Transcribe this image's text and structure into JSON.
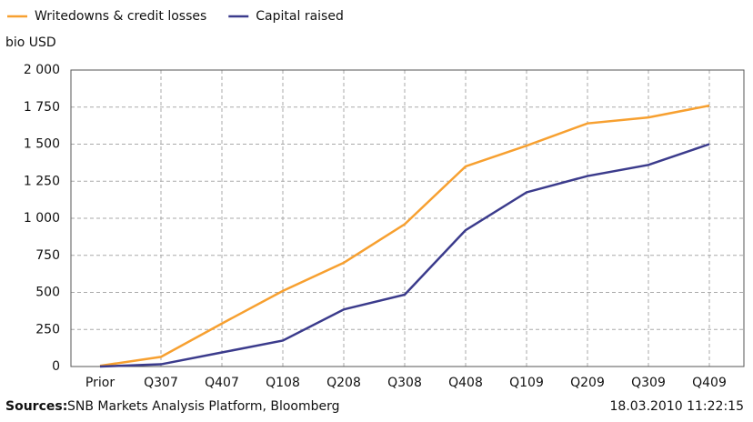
{
  "chart_data": {
    "type": "line",
    "y_label": "bio USD",
    "categories": [
      "Prior",
      "Q307",
      "Q407",
      "Q108",
      "Q208",
      "Q308",
      "Q408",
      "Q109",
      "Q209",
      "Q309",
      "Q409"
    ],
    "series": [
      {
        "name": "Writedowns & credit losses",
        "color": "#f7a030",
        "values": [
          5,
          65,
          290,
          510,
          700,
          960,
          1350,
          1490,
          1640,
          1680,
          1760
        ]
      },
      {
        "name": "Capital raised",
        "color": "#3b3b8c",
        "values": [
          0,
          15,
          95,
          175,
          385,
          485,
          920,
          1175,
          1285,
          1360,
          1500
        ]
      }
    ],
    "ylim": [
      0,
      2000
    ],
    "yticks": [
      0,
      250,
      500,
      750,
      {
        "value": 1000,
        "label": "1 000"
      },
      {
        "value": 1250,
        "label": "1 250"
      },
      {
        "value": 1500,
        "label": "1 500"
      },
      {
        "value": 1750,
        "label": "1 750"
      },
      {
        "value": 2000,
        "label": "2 000"
      }
    ],
    "grid": true,
    "source_label": "Sources:",
    "source_text": "SNB Markets Analysis Platform, Bloomberg",
    "timestamp": "18.03.2010 11:22:15"
  }
}
